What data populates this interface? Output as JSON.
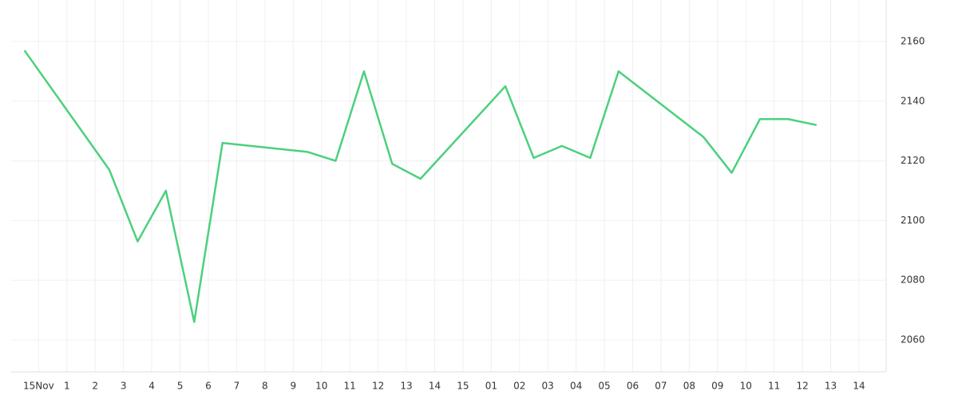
{
  "chart_data": {
    "type": "line",
    "x": [
      -0.5,
      2.5,
      3.5,
      4.5,
      5.5,
      6.5,
      9.5,
      10.5,
      11.5,
      12.5,
      13.5,
      16.5,
      17.5,
      18.5,
      19.5,
      20.5,
      23.5,
      24.5,
      25.5,
      26.5,
      27.5
    ],
    "series": [
      {
        "color": "#4cd07d",
        "values": [
          2157,
          2117,
          2093,
          2110,
          2066,
          2126,
          2123,
          2120,
          2150,
          2119,
          2114,
          2145,
          2121,
          2125,
          2121,
          2150,
          2128,
          2116,
          2134,
          2134,
          2132
        ]
      }
    ],
    "xlim": [
      -0.97,
      29.96
    ],
    "xticks": [
      {
        "value": 0,
        "label": "15Nov"
      },
      1,
      2,
      3,
      4,
      5,
      6,
      7,
      8,
      9,
      10,
      11,
      12,
      13,
      14,
      15,
      {
        "value": 16,
        "label": "01"
      },
      {
        "value": 17,
        "label": "02"
      },
      {
        "value": 18,
        "label": "03"
      },
      {
        "value": 19,
        "label": "04"
      },
      {
        "value": 20,
        "label": "05"
      },
      {
        "value": 21,
        "label": "06"
      },
      {
        "value": 22,
        "label": "07"
      },
      {
        "value": 23,
        "label": "08"
      },
      {
        "value": 24,
        "label": "09"
      },
      {
        "value": 25,
        "label": "10"
      },
      {
        "value": 26,
        "label": "11"
      },
      {
        "value": 27,
        "label": "12"
      },
      {
        "value": 28,
        "label": "13"
      },
      {
        "value": 29,
        "label": "14"
      }
    ],
    "ylim": [
      2049.3,
      2173.9
    ],
    "yticks": [
      2060,
      2080,
      2100,
      2120,
      2140,
      2160
    ],
    "grid": true
  }
}
